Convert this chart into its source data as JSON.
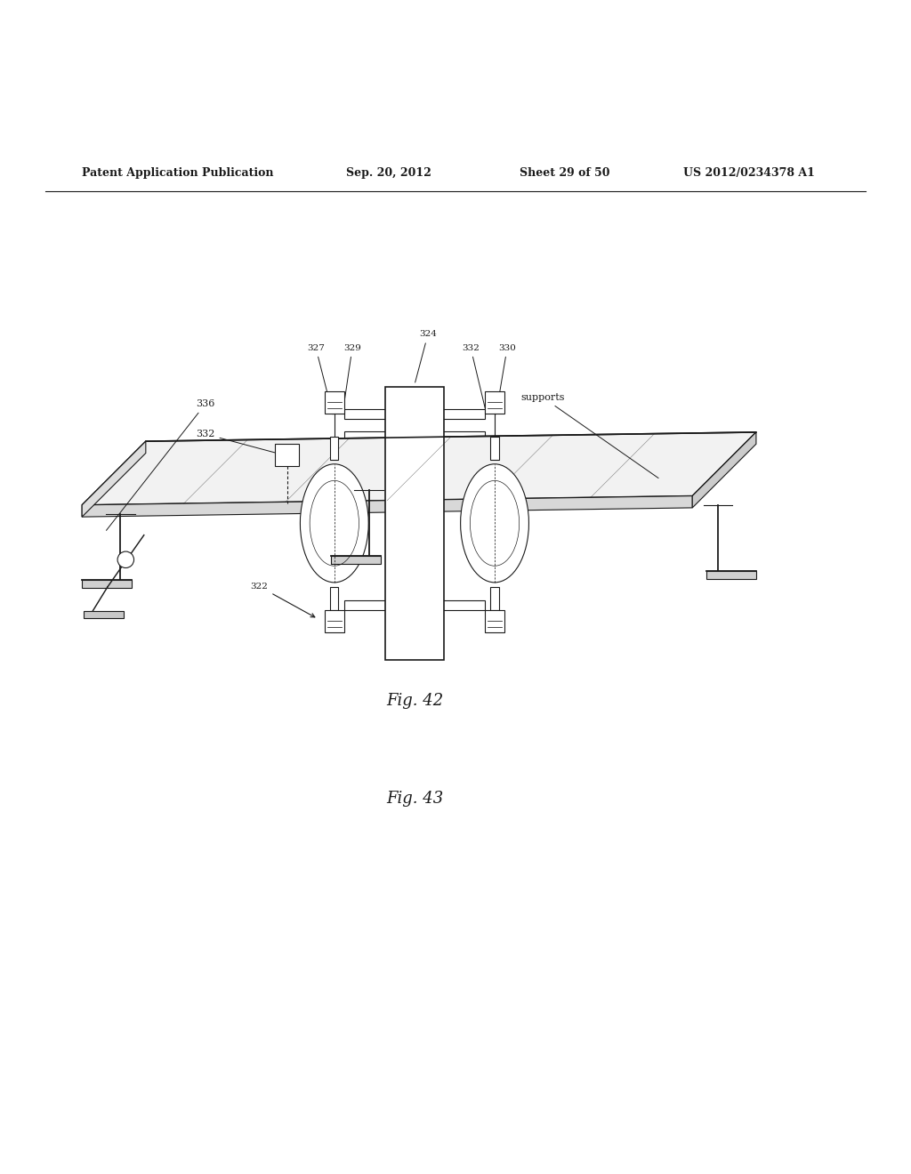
{
  "bg_color": "#ffffff",
  "header_text": "Patent Application Publication",
  "header_date": "Sep. 20, 2012",
  "header_sheet": "Sheet 29 of 50",
  "header_patent": "US 2012/0234378 A1",
  "fig42_caption": "Fig. 42",
  "fig43_caption": "Fig. 43",
  "line_color": "#1a1a1a"
}
